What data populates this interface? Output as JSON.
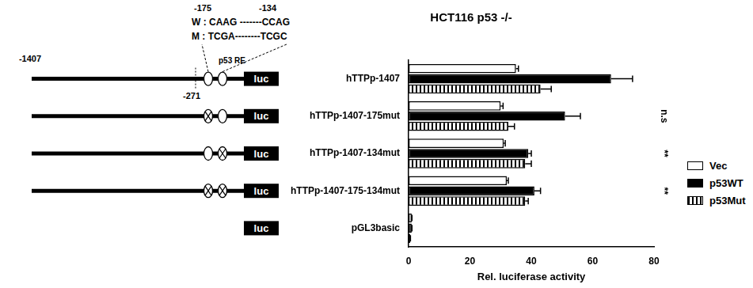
{
  "chart_data": {
    "type": "bar",
    "orientation": "horizontal",
    "title": "HCT116 p53 -/-",
    "x_label": "Rel. luciferase activity",
    "categories": [
      "hTTPp-1407",
      "hTTPp-1407-175mut",
      "hTTPp-1407-134mut",
      "hTTPp-1407-175-134mut",
      "pGL3basic"
    ],
    "series": [
      {
        "name": "Vec",
        "color": "#ffffff",
        "values": [
          35,
          30,
          31,
          32,
          1
        ],
        "errors": [
          0.8,
          0.8,
          0.5,
          0.5,
          0.1
        ]
      },
      {
        "name": "p53WT",
        "color": "#000000",
        "values": [
          66,
          51,
          39,
          41,
          1
        ],
        "errors": [
          7,
          5,
          1,
          2,
          0.1
        ]
      },
      {
        "name": "p53Mut",
        "color": "#ffffff",
        "marker": "stripes",
        "values": [
          43,
          32.5,
          38,
          38,
          0.5
        ],
        "errors": [
          3.5,
          2,
          2,
          1,
          0.1
        ]
      }
    ],
    "xlim": [
      0,
      80
    ],
    "xticks": [
      0,
      20,
      40,
      60,
      80
    ],
    "grid": false,
    "legend": "right",
    "data_labels": false,
    "annotations": [
      {
        "category": "hTTPp-1407-175mut",
        "text": "n.s"
      },
      {
        "category": "hTTPp-1407-134mut",
        "text": "**"
      },
      {
        "category": "hTTPp-1407-175-134mut",
        "text": "**"
      }
    ]
  },
  "diagram": {
    "start_label": "-1407",
    "cut_label": "-271",
    "re_label": "p53 RE",
    "site_labels": [
      "-175",
      "-134"
    ],
    "wild_type": "W : CAAG -------CCAG",
    "mutant": "M : TCGA--------TCGC",
    "reporter": "luc",
    "constructs": [
      {
        "promoter": true,
        "sites_mutated": [
          false,
          false
        ]
      },
      {
        "promoter": true,
        "sites_mutated": [
          true,
          false
        ]
      },
      {
        "promoter": true,
        "sites_mutated": [
          false,
          true
        ]
      },
      {
        "promoter": true,
        "sites_mutated": [
          true,
          true
        ]
      },
      {
        "promoter": false
      }
    ]
  }
}
